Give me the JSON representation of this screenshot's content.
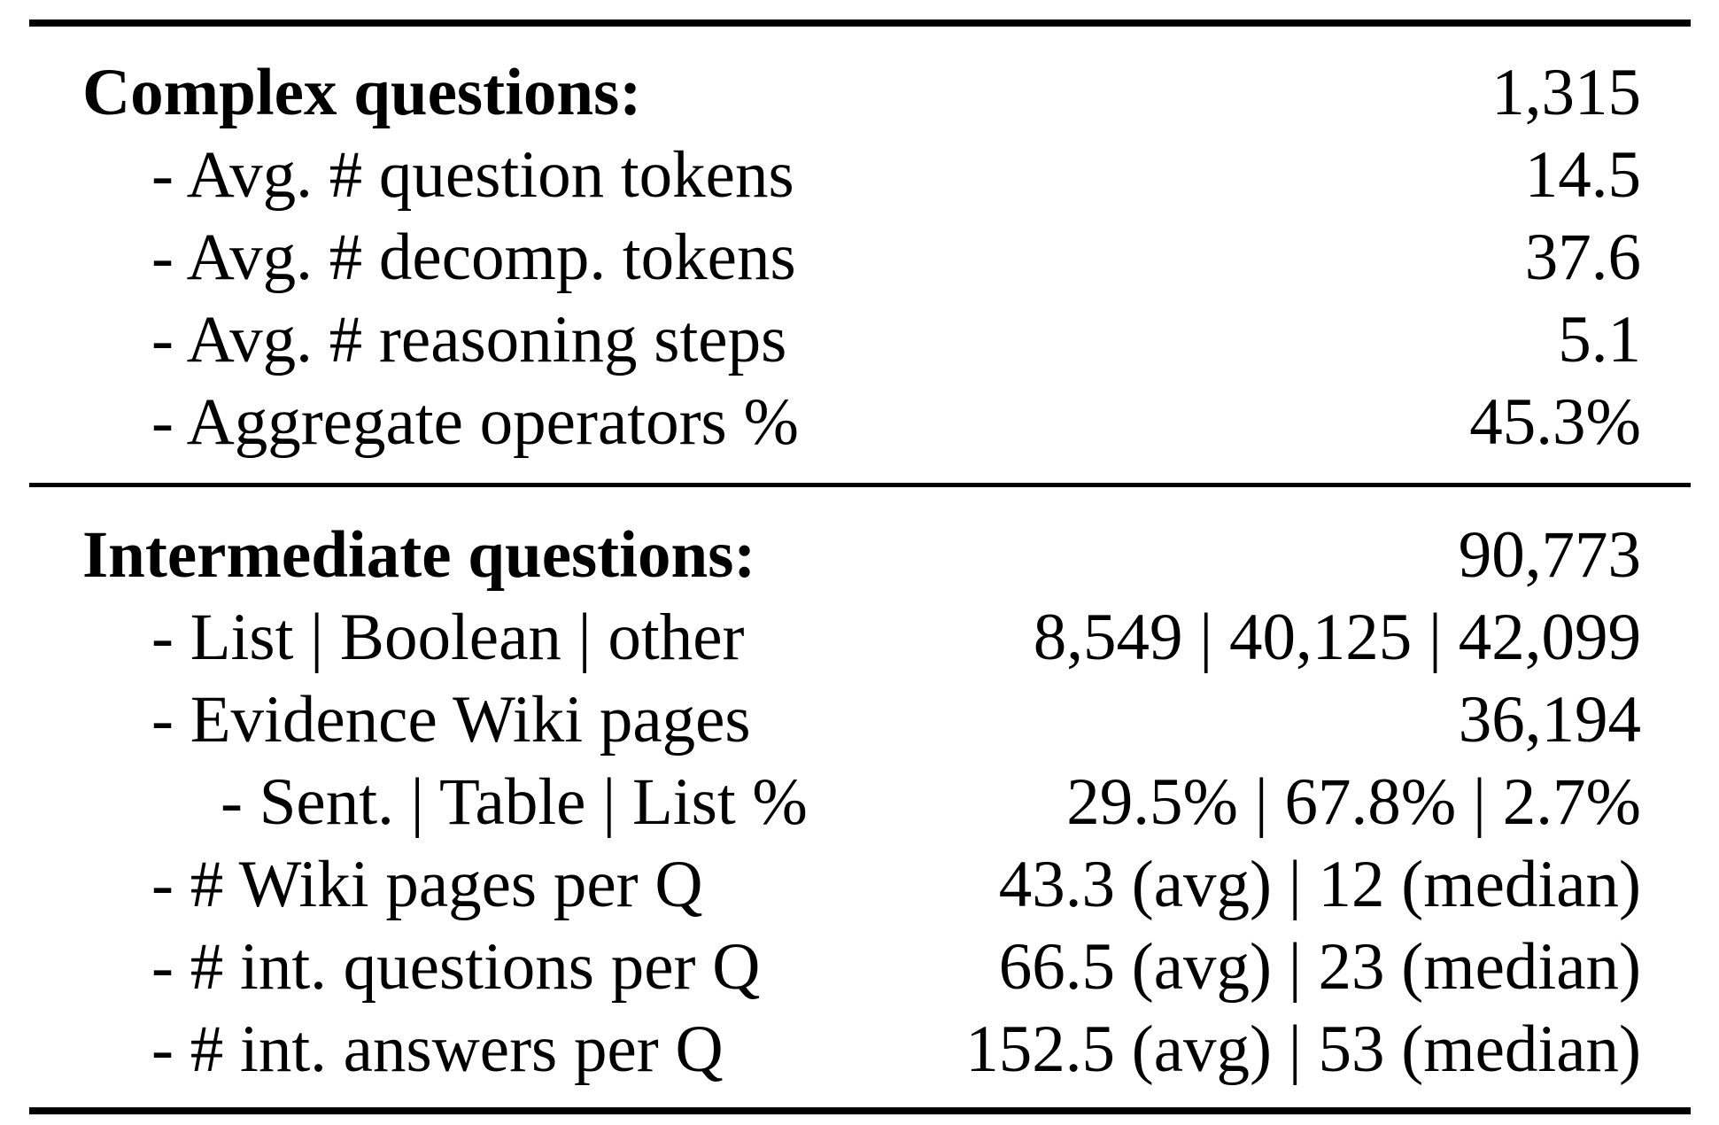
{
  "table": {
    "complex": {
      "header": {
        "label": "Complex questions:",
        "value": "1,315"
      },
      "rows": [
        {
          "label": "- Avg. # question tokens",
          "value": "14.5"
        },
        {
          "label": "- Avg. # decomp. tokens",
          "value": "37.6"
        },
        {
          "label": "- Avg. # reasoning steps",
          "value": "5.1"
        },
        {
          "label": "- Aggregate operators %",
          "value": "45.3%"
        }
      ]
    },
    "intermediate": {
      "header": {
        "label": "Intermediate questions:",
        "value": "90,773"
      },
      "rows": [
        {
          "label": "- List | Boolean | other",
          "value": "8,549 | 40,125 | 42,099"
        },
        {
          "label": "- Evidence Wiki pages",
          "value": "36,194"
        },
        {
          "label": "- Sent. | Table | List %",
          "value": "29.5% | 67.8% | 2.7%"
        },
        {
          "label": "- # Wiki pages per Q",
          "value": "43.3 (avg) | 12 (median)"
        },
        {
          "label": "- # int. questions per Q",
          "value": "66.5 (avg) | 23 (median)"
        },
        {
          "label": "- # int. answers per Q",
          "value": "152.5 (avg) | 53 (median)"
        }
      ]
    }
  }
}
